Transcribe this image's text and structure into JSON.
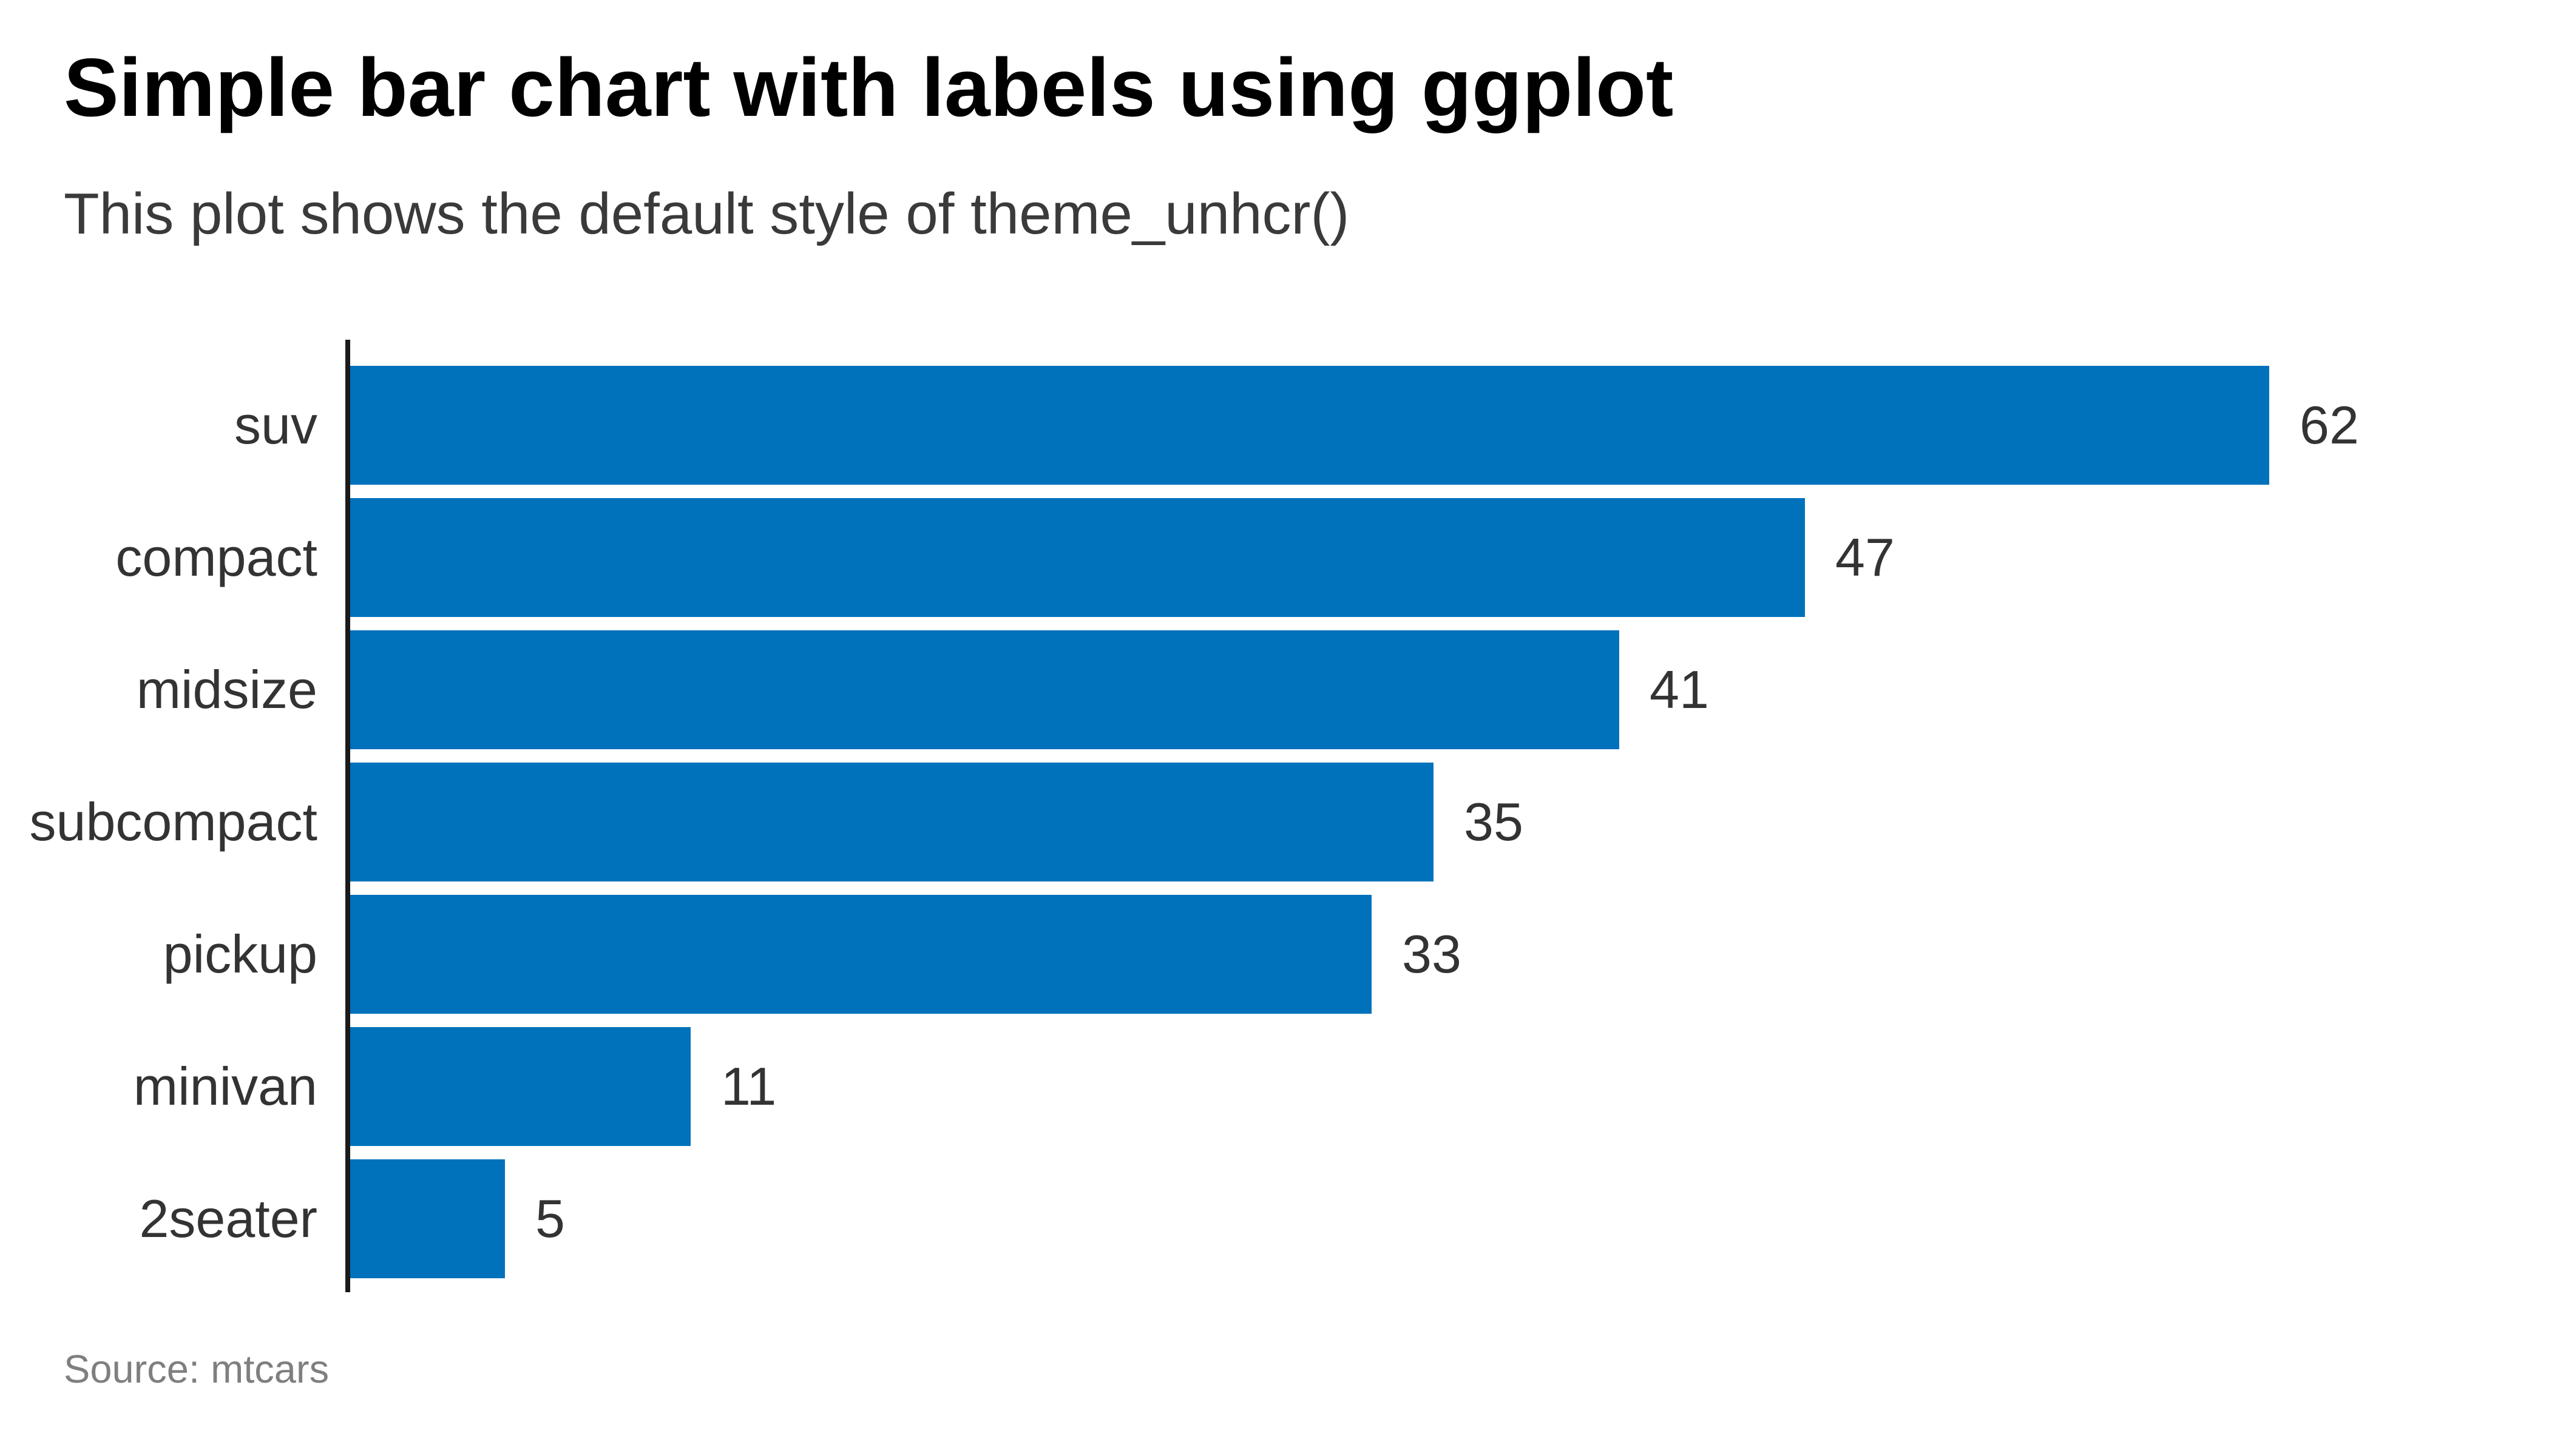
{
  "header": {
    "title": "Simple bar chart with labels using ggplot",
    "subtitle": "This plot shows the default style of theme_unhcr()"
  },
  "footer": {
    "caption": "Source: mtcars"
  },
  "chart_data": {
    "type": "bar",
    "orientation": "horizontal",
    "title": "Simple bar chart with labels using ggplot",
    "subtitle": "This plot shows the default style of theme_unhcr()",
    "caption": "Source: mtcars",
    "categories": [
      "suv",
      "compact",
      "midsize",
      "subcompact",
      "pickup",
      "minivan",
      "2seater"
    ],
    "values": [
      62,
      47,
      41,
      35,
      33,
      11,
      5
    ],
    "data_labels_shown": true,
    "xlim": [
      0,
      71
    ],
    "grid": false,
    "legend": false,
    "colors": {
      "bar": "#0072BC",
      "axis_line": "#1a1a1a",
      "title_text": "#000000",
      "subtitle_text": "#3a3a3a",
      "category_label_text": "#333333",
      "value_label_text": "#333333",
      "caption_text": "#7f7f7f",
      "background": "#ffffff"
    }
  }
}
